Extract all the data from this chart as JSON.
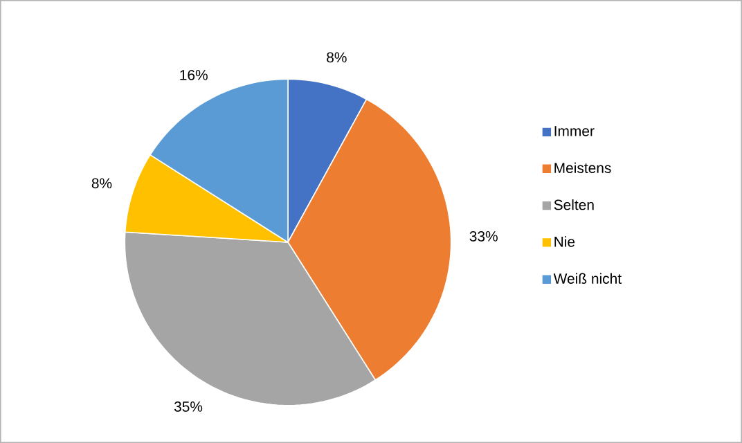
{
  "chart_data": {
    "type": "pie",
    "categories": [
      "Immer",
      "Meistens",
      "Selten",
      "Nie",
      "Weiß nicht"
    ],
    "values": [
      8,
      33,
      35,
      8,
      16
    ],
    "colors": [
      "#4472c4",
      "#ed7d31",
      "#a5a5a5",
      "#ffc000",
      "#5b9bd5"
    ],
    "value_labels": [
      "8%",
      "33%",
      "35%",
      "8%",
      "16%"
    ],
    "legend": "right"
  }
}
